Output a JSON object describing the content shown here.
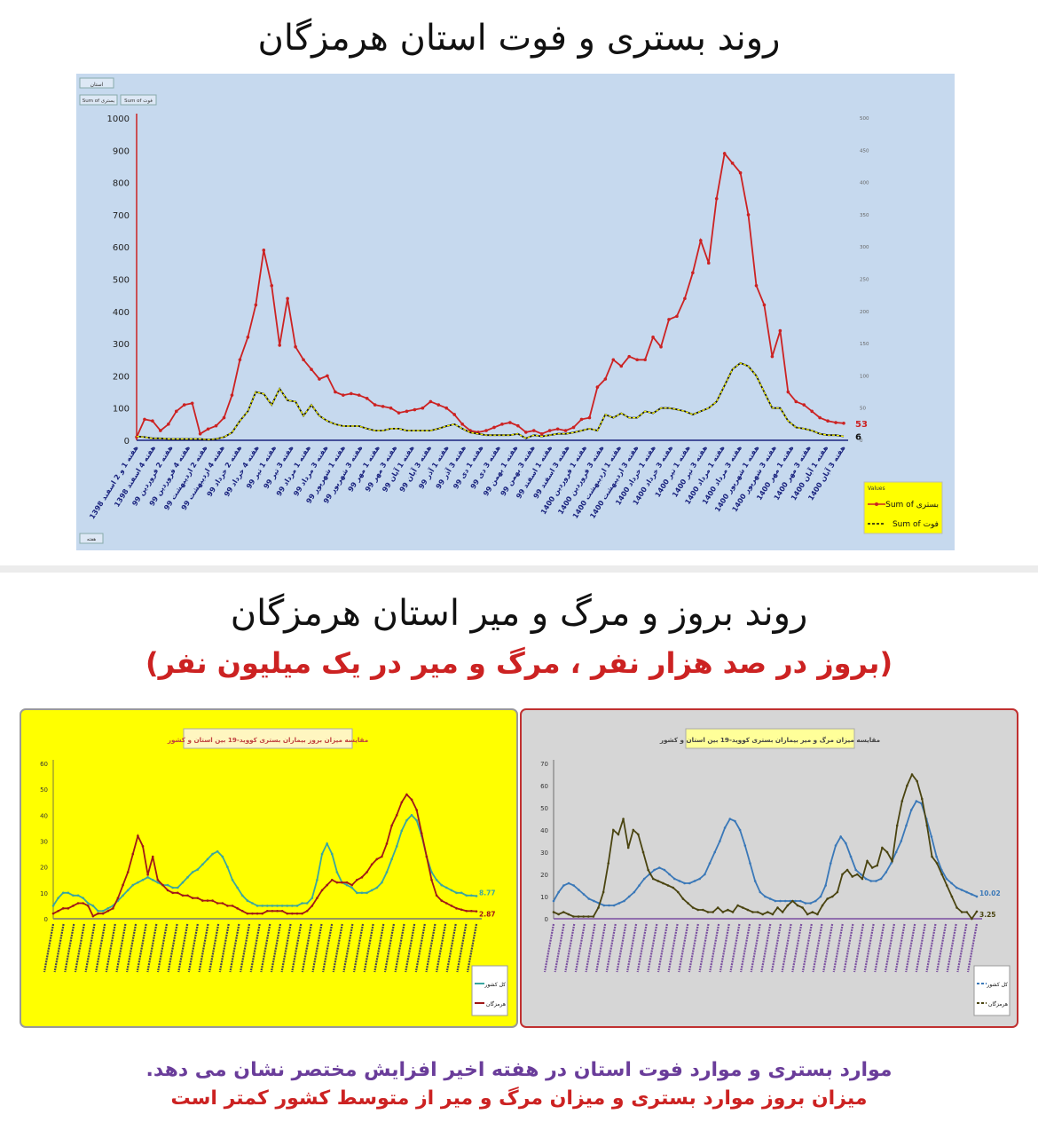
{
  "titles": {
    "top": "روند بستری و فوت استان هرمزگان",
    "middle": "روند بروز و مرگ و میر استان هرمزگان",
    "middle_sub": "(بروز در صد هزار نفر ، مرگ و میر در یک میلیون نفر)"
  },
  "footer": {
    "part1": "موارد بستری و موارد فوت استان در هفته اخیر افزایش مختصر نشان می دهد.",
    "part2": "میزان بروز موارد بستری و میزان مرگ و میر از متوسط کشور کمتر است"
  },
  "colors": {
    "chart1_bg": "#c6d9ee",
    "red": "#cc2222",
    "yellow": "#ffff00",
    "teal": "#3aa6a0",
    "dark_red": "#a01818",
    "grey_bg": "#d6d6d6",
    "blue": "#3a78b8",
    "olive": "#4a4410",
    "purple": "#7a4fa0"
  },
  "chart_data": [
    {
      "type": "line",
      "y_left_range": [
        0,
        1000
      ],
      "y_left_ticks": [
        "0",
        "100",
        "200",
        "300",
        "400",
        "500",
        "600",
        "700",
        "800",
        "900",
        "1000"
      ],
      "y_right_range": [
        0,
        500
      ],
      "y_right_ticks": [
        "0",
        "50",
        "100",
        "150",
        "200",
        "250",
        "300",
        "350",
        "400",
        "450",
        "500"
      ],
      "filter_labels": [
        "استان",
        "Sum of بستری",
        "Sum of فوت",
        "هفته"
      ],
      "x_labels": [
        "هفته 1 و 2 اسفند 1398",
        "هفته 4 اسفند 1398",
        "هفته 2 فروردین 99",
        "هفته 4 فروردین 99",
        "هفته 2 اردیبهشت 99",
        "هفته 4 اردیبهشت 99",
        "هفته 2 خرداد 99",
        "هفته 4 خرداد 99",
        "هفته 1 تیر 99",
        "هفته 3 تیر 99",
        "هفته 1 مرداد 99",
        "هفته 3 مرداد 99",
        "هفته 1 شهریور 99",
        "هفته 3 شهریور 99",
        "هفته 1 مهر 99",
        "هفته 3 مهر 99",
        "هفته 1 آبان 99",
        "هفته 3 آبان 99",
        "هفته 1 آذر 99",
        "هفته 3 آذر 99",
        "هفته 1 دی 99",
        "هفته 3 دی 99",
        "هفته 1 بهمن 99",
        "هفته 3 بهمن 99",
        "هفته 1 اسفند 99",
        "هفته 3 اسفند 99",
        "هفته 1 فروردین 1400",
        "هفته 3 فروردین 1400",
        "هفته 1 اردیبهشت 1400",
        "هفته 3 اردیبهشت 1400",
        "هفته 1 خرداد 1400",
        "هفته 3 خرداد 1400",
        "هفته 1 تیر 1400",
        "هفته 3 تیر 1400",
        "هفته 1 مرداد 1400",
        "هفته 3 مرداد 1400",
        "هفته 1 شهریور 1400",
        "هفته 3 شهریور 1400",
        "هفته 1 مهر 1400",
        "هفته 3 مهر 1400",
        "هفته 1 آبان 1400",
        "هفته 3 آبان 1400"
      ],
      "legend_title": "Values",
      "series": [
        {
          "name": "Sum of بستری",
          "axis": "left",
          "end_label": "53",
          "values": [
            10,
            65,
            60,
            30,
            50,
            90,
            110,
            115,
            20,
            35,
            45,
            70,
            140,
            250,
            320,
            420,
            590,
            480,
            295,
            440,
            290,
            250,
            220,
            190,
            200,
            150,
            140,
            145,
            140,
            130,
            110,
            105,
            100,
            85,
            90,
            95,
            100,
            120,
            110,
            100,
            80,
            50,
            30,
            25,
            30,
            40,
            50,
            55,
            45,
            25,
            30,
            20,
            30,
            35,
            30,
            40,
            65,
            70,
            165,
            190,
            250,
            230,
            260,
            250,
            250,
            320,
            290,
            375,
            385,
            440,
            520,
            620,
            550,
            750,
            890,
            860,
            830,
            700,
            480,
            420,
            260,
            340,
            150,
            120,
            110,
            90,
            70,
            60,
            55,
            53
          ]
        },
        {
          "name": "Sum of فوت",
          "axis": "right",
          "end_label": "6",
          "values": [
            6,
            5,
            3,
            3,
            2,
            2,
            2,
            2,
            2,
            1,
            2,
            5,
            12,
            30,
            45,
            75,
            72,
            55,
            80,
            62,
            60,
            38,
            55,
            38,
            30,
            25,
            22,
            22,
            22,
            18,
            15,
            15,
            18,
            18,
            15,
            15,
            15,
            15,
            18,
            22,
            25,
            18,
            12,
            10,
            8,
            8,
            8,
            8,
            10,
            3,
            8,
            6,
            8,
            10,
            10,
            12,
            15,
            18,
            15,
            40,
            35,
            42,
            35,
            35,
            45,
            42,
            50,
            50,
            48,
            45,
            40,
            45,
            50,
            60,
            85,
            110,
            120,
            115,
            100,
            75,
            50,
            50,
            30,
            20,
            18,
            15,
            10,
            8,
            8,
            6
          ]
        }
      ]
    },
    {
      "type": "line",
      "title": "مقایسه میزان بروز بیماران بستری کووید-19 بین استان و کشور",
      "y_range": [
        0,
        60
      ],
      "y_ticks": [
        "0",
        "10",
        "20",
        "30",
        "40",
        "50",
        "60"
      ],
      "series": [
        {
          "name": "کل کشور",
          "end_label": "8.77",
          "values": [
            5,
            8,
            10,
            10,
            9,
            9,
            8,
            6,
            5,
            3,
            3,
            4,
            5,
            7,
            9,
            11,
            13,
            14,
            15,
            16,
            15,
            14,
            13,
            13,
            12,
            12,
            14,
            16,
            18,
            19,
            21,
            23,
            25,
            26,
            24,
            20,
            15,
            12,
            9,
            7,
            6,
            5,
            5,
            5,
            5,
            5,
            5,
            5,
            5,
            5,
            6,
            6,
            8,
            15,
            25,
            29,
            25,
            18,
            14,
            13,
            12,
            10,
            10,
            10,
            11,
            12,
            14,
            18,
            23,
            28,
            34,
            38,
            40,
            38,
            32,
            24,
            18,
            15,
            13,
            12,
            11,
            10,
            10,
            9,
            9,
            8.77
          ]
        },
        {
          "name": "هرمزگان",
          "end_label": "2.87",
          "values": [
            2,
            3,
            4,
            4,
            5,
            6,
            6,
            5,
            1,
            2,
            2,
            3,
            4,
            8,
            13,
            18,
            25,
            32,
            28,
            17,
            24,
            15,
            13,
            11,
            10,
            10,
            9,
            9,
            8,
            8,
            7,
            7,
            7,
            6,
            6,
            5,
            5,
            4,
            3,
            2,
            2,
            2,
            2,
            3,
            3,
            3,
            3,
            2,
            2,
            2,
            2,
            3,
            5,
            8,
            11,
            13,
            15,
            14,
            14,
            14,
            13,
            15,
            16,
            18,
            21,
            23,
            24,
            29,
            36,
            40,
            45,
            48,
            46,
            42,
            33,
            24,
            15,
            9,
            7,
            6,
            5,
            4,
            3.5,
            3,
            3,
            2.87
          ]
        }
      ]
    },
    {
      "type": "line",
      "title": "مقایسه میزان مرگ و میر بیماران بستری کووید-19 بین استان و کشور",
      "y_range": [
        0,
        70
      ],
      "y_ticks": [
        "0",
        "10",
        "20",
        "30",
        "40",
        "50",
        "60",
        "70"
      ],
      "series": [
        {
          "name": "کل کشور",
          "end_label": "10.02",
          "values": [
            8,
            12,
            15,
            16,
            15,
            13,
            11,
            9,
            8,
            7,
            6,
            6,
            6,
            7,
            8,
            10,
            12,
            15,
            18,
            20,
            22,
            23,
            22,
            20,
            18,
            17,
            16,
            16,
            17,
            18,
            20,
            25,
            30,
            35,
            41,
            45,
            44,
            40,
            33,
            25,
            17,
            12,
            10,
            9,
            8,
            8,
            8,
            8,
            8,
            8,
            7,
            7,
            8,
            10,
            15,
            25,
            33,
            37,
            34,
            28,
            22,
            20,
            18,
            17,
            17,
            18,
            21,
            25,
            30,
            35,
            42,
            49,
            53,
            52,
            45,
            37,
            28,
            22,
            18,
            16,
            14,
            13,
            12,
            11,
            10.02
          ]
        },
        {
          "name": "هرمزگان",
          "end_label": "3.25",
          "values": [
            3,
            2,
            3,
            2,
            1,
            1,
            1,
            1,
            1,
            5,
            12,
            25,
            40,
            38,
            45,
            32,
            40,
            38,
            30,
            22,
            18,
            17,
            16,
            15,
            14,
            12,
            9,
            7,
            5,
            4,
            4,
            3,
            3,
            5,
            3,
            4,
            3,
            6,
            5,
            4,
            3,
            3,
            2,
            3,
            2,
            5,
            3,
            6,
            8,
            6,
            5,
            2,
            3,
            2,
            6,
            9,
            10,
            12,
            20,
            22,
            19,
            20,
            18,
            26,
            23,
            24,
            32,
            30,
            26,
            42,
            53,
            60,
            65,
            62,
            54,
            42,
            28,
            25,
            20,
            15,
            10,
            5,
            3,
            3,
            0,
            3.25
          ]
        }
      ]
    }
  ]
}
